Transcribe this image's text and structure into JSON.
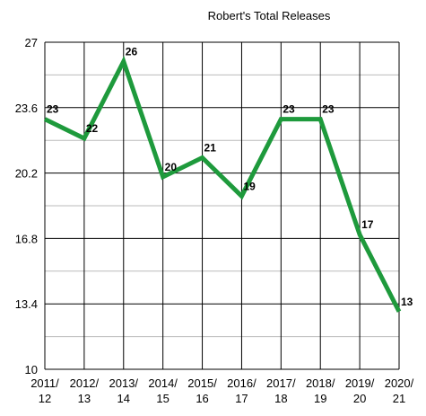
{
  "chart_data": {
    "type": "line",
    "title": "Robert's Total Releases",
    "categories": [
      "2011/12",
      "2012/13",
      "2013/14",
      "2014/15",
      "2015/16",
      "2016/17",
      "2017/18",
      "2018/19",
      "2019/20",
      "2020/21"
    ],
    "series": [
      {
        "name": "Robert's Total Releases",
        "color": "#1e9a3c",
        "values": [
          23,
          22,
          26,
          20,
          21,
          19,
          23,
          23,
          17,
          13
        ]
      }
    ],
    "ylim": [
      10,
      27
    ],
    "yticks": [
      10,
      13.4,
      16.8,
      20.2,
      23.6,
      27
    ],
    "grid": true
  }
}
